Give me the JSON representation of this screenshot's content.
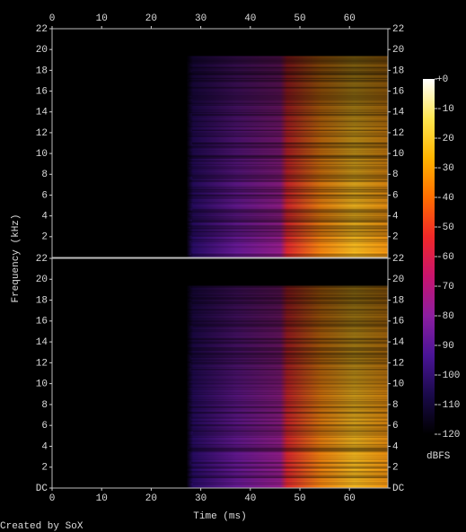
{
  "chart_data": {
    "type": "spectrogram",
    "xlabel": "Time (ms)",
    "ylabel": "Frequency (kHz)",
    "credit": "Created by SoX",
    "xlim": [
      0,
      67.75
    ],
    "xticks": [
      0,
      10,
      20,
      30,
      40,
      50,
      60
    ],
    "channels": [
      {
        "ylim": [
          0,
          22
        ],
        "yticks": [
          2,
          4,
          6,
          8,
          10,
          12,
          14,
          16,
          18,
          20,
          22
        ]
      },
      {
        "ylim": [
          0,
          22
        ],
        "yticks": [
          {
            "value": 0,
            "label": "DC"
          },
          2,
          4,
          6,
          8,
          10,
          12,
          14,
          16,
          18,
          20,
          22
        ]
      }
    ],
    "colorbar": {
      "label": "dBFS",
      "lim": [
        -120,
        0
      ],
      "ticks": [
        {
          "value": 0,
          "label": "+0"
        },
        -10,
        -20,
        -30,
        -40,
        -50,
        -60,
        -70,
        -80,
        -90,
        -100,
        -110,
        -120
      ],
      "colormap": [
        "#000000",
        "#1a0a4a",
        "#4a1496",
        "#8c1ea0",
        "#c8146e",
        "#f02828",
        "#ff6e00",
        "#ffb400",
        "#ffe650",
        "#ffffff"
      ]
    }
  }
}
